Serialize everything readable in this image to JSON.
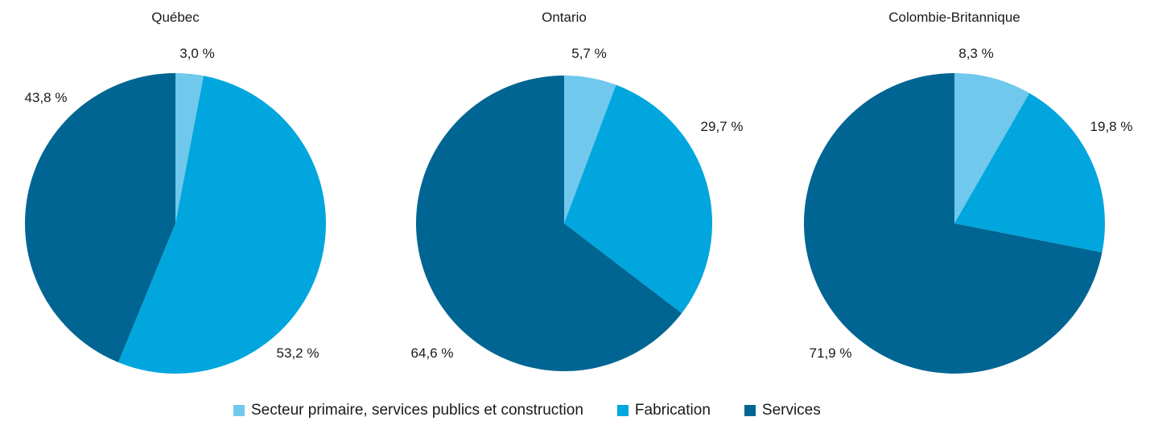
{
  "colors": {
    "primaire": "#70c8ec",
    "fabrication": "#00a6dd",
    "services": "#006592"
  },
  "chart_data": [
    {
      "type": "pie",
      "title": "Québec",
      "categories": [
        "Secteur primaire, services publics et construction",
        "Fabrication",
        "Services"
      ],
      "values": [
        3.0,
        53.2,
        43.8
      ],
      "labels": [
        "3,0 %",
        "53,2 %",
        "43,8 %"
      ],
      "start_angle": "12 o'clock",
      "direction": "clockwise"
    },
    {
      "type": "pie",
      "title": "Ontario",
      "categories": [
        "Secteur primaire, services publics et construction",
        "Fabrication",
        "Services"
      ],
      "values": [
        5.7,
        29.7,
        64.6
      ],
      "labels": [
        "5,7 %",
        "29,7 %",
        "64,6 %"
      ],
      "start_angle": "12 o'clock",
      "direction": "clockwise"
    },
    {
      "type": "pie",
      "title": "Colombie-Britannique",
      "categories": [
        "Secteur primaire, services publics et construction",
        "Fabrication",
        "Services"
      ],
      "values": [
        8.3,
        19.8,
        71.9
      ],
      "labels": [
        "8,3 %",
        "19,8 %",
        "71,9 %"
      ],
      "start_angle": "12 o'clock",
      "direction": "clockwise"
    }
  ],
  "legend": {
    "placement": "bottom-center",
    "items": [
      {
        "label": "Secteur primaire, services publics et construction",
        "color": "#70c8ec"
      },
      {
        "label": "Fabrication",
        "color": "#00a6dd"
      },
      {
        "label": "Services",
        "color": "#006592"
      }
    ]
  }
}
